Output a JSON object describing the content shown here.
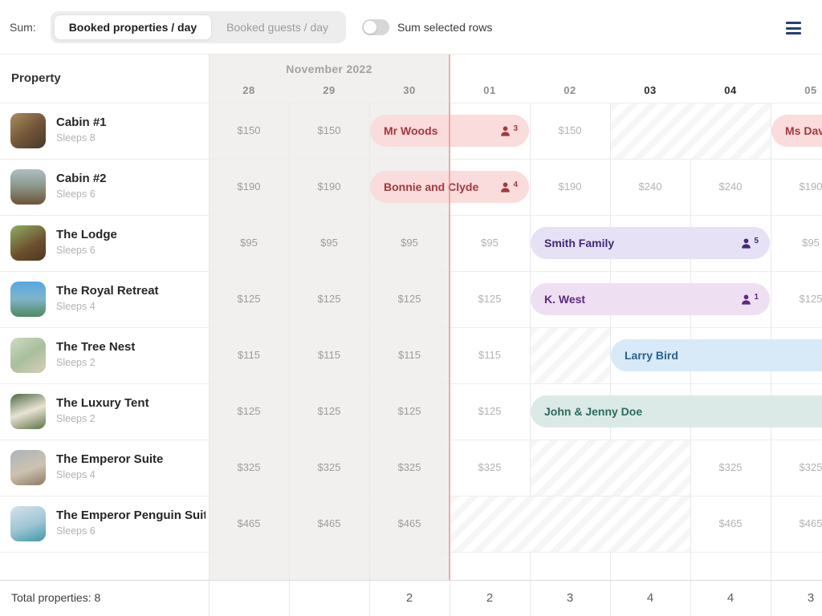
{
  "toolbar": {
    "sum_label": "Sum:",
    "segments": [
      {
        "label": "Booked properties / day",
        "active": true
      },
      {
        "label": "Booked guests / day",
        "active": false
      }
    ],
    "toggle": {
      "label": "Sum selected rows",
      "state": "off"
    },
    "menu_icon": "hamburger-menu"
  },
  "calendar": {
    "property_header": "Property",
    "month_label": "November 2022",
    "days": [
      {
        "label": "28",
        "past": true,
        "weekend": false
      },
      {
        "label": "29",
        "past": true,
        "weekend": false
      },
      {
        "label": "30",
        "past": true,
        "weekend": false
      },
      {
        "label": "01",
        "past": false,
        "weekend": false
      },
      {
        "label": "02",
        "past": false,
        "weekend": false
      },
      {
        "label": "03",
        "past": false,
        "weekend": true
      },
      {
        "label": "04",
        "past": false,
        "weekend": true
      },
      {
        "label": "05",
        "past": false,
        "weekend": false
      }
    ],
    "colors": {
      "past_bg": "#f1f0ef",
      "today_line": "#e4827c",
      "weekend_text": "#2b2b2b"
    }
  },
  "booking_colors": {
    "red": {
      "bg": "#f9dcdb",
      "fg": "#a23940"
    },
    "purple": {
      "bg": "#e6e1f4",
      "fg": "#43297a"
    },
    "lilac": {
      "bg": "#efdff2",
      "fg": "#5d2a7e"
    },
    "blue": {
      "bg": "#d8e9f8",
      "fg": "#29618e"
    },
    "teal": {
      "bg": "#dbeae6",
      "fg": "#2b6a5e"
    }
  },
  "icons": {
    "guest": "person-icon",
    "menu": "hamburger-menu-icon"
  },
  "properties": [
    {
      "name": "Cabin #1",
      "sleeps": "Sleeps 8",
      "cells": [
        {
          "t": "price",
          "v": "$150"
        },
        {
          "t": "price",
          "v": "$150"
        },
        null,
        null,
        {
          "t": "price",
          "v": "$150"
        },
        {
          "t": "hatch"
        },
        {
          "t": "hatch"
        },
        null
      ],
      "bookings": [
        {
          "label": "Mr Woods",
          "guests": "3",
          "color": "red",
          "start": 2,
          "span": 2,
          "clipped": false
        },
        {
          "label": "Ms Dav",
          "guests": null,
          "color": "red",
          "start": 7,
          "span": 2,
          "clipped": true
        }
      ]
    },
    {
      "name": "Cabin #2",
      "sleeps": "Sleeps 6",
      "cells": [
        {
          "t": "price",
          "v": "$190"
        },
        {
          "t": "price",
          "v": "$190"
        },
        null,
        null,
        {
          "t": "price",
          "v": "$190"
        },
        {
          "t": "price",
          "v": "$240"
        },
        {
          "t": "price",
          "v": "$240"
        },
        {
          "t": "price",
          "v": "$190"
        }
      ],
      "bookings": [
        {
          "label": "Bonnie and Clyde",
          "guests": "4",
          "color": "red",
          "start": 2,
          "span": 2,
          "clipped": false
        }
      ]
    },
    {
      "name": "The Lodge",
      "sleeps": "Sleeps 6",
      "cells": [
        {
          "t": "price",
          "v": "$95"
        },
        {
          "t": "price",
          "v": "$95"
        },
        {
          "t": "price",
          "v": "$95"
        },
        {
          "t": "price",
          "v": "$95"
        },
        null,
        null,
        null,
        {
          "t": "price",
          "v": "$95"
        }
      ],
      "bookings": [
        {
          "label": "Smith Family",
          "guests": "5",
          "color": "purple",
          "start": 4,
          "span": 3,
          "clipped": false
        }
      ]
    },
    {
      "name": "The Royal Retreat",
      "sleeps": "Sleeps 4",
      "cells": [
        {
          "t": "price",
          "v": "$125"
        },
        {
          "t": "price",
          "v": "$125"
        },
        {
          "t": "price",
          "v": "$125"
        },
        {
          "t": "price",
          "v": "$125"
        },
        null,
        null,
        null,
        {
          "t": "price",
          "v": "$125"
        }
      ],
      "bookings": [
        {
          "label": "K. West",
          "guests": "1",
          "color": "lilac",
          "start": 4,
          "span": 3,
          "clipped": false
        }
      ]
    },
    {
      "name": "The Tree Nest",
      "sleeps": "Sleeps 2",
      "cells": [
        {
          "t": "price",
          "v": "$115"
        },
        {
          "t": "price",
          "v": "$115"
        },
        {
          "t": "price",
          "v": "$115"
        },
        {
          "t": "price",
          "v": "$115"
        },
        {
          "t": "hatch"
        },
        null,
        null,
        null
      ],
      "bookings": [
        {
          "label": "Larry Bird",
          "guests": null,
          "color": "blue",
          "start": 5,
          "span": 3,
          "clipped": true
        }
      ]
    },
    {
      "name": "The Luxury Tent",
      "sleeps": "Sleeps 2",
      "cells": [
        {
          "t": "price",
          "v": "$125"
        },
        {
          "t": "price",
          "v": "$125"
        },
        {
          "t": "price",
          "v": "$125"
        },
        {
          "t": "price",
          "v": "$125"
        },
        null,
        null,
        null,
        null
      ],
      "bookings": [
        {
          "label": "John & Jenny Doe",
          "guests": null,
          "color": "teal",
          "start": 4,
          "span": 4,
          "clipped": true
        }
      ]
    },
    {
      "name": "The Emperor Suite",
      "sleeps": "Sleeps 4",
      "cells": [
        {
          "t": "price",
          "v": "$325"
        },
        {
          "t": "price",
          "v": "$325"
        },
        {
          "t": "price",
          "v": "$325"
        },
        {
          "t": "price",
          "v": "$325"
        },
        {
          "t": "hatch"
        },
        {
          "t": "hatch"
        },
        {
          "t": "price",
          "v": "$325"
        },
        {
          "t": "price",
          "v": "$325"
        }
      ],
      "bookings": []
    },
    {
      "name": "The Emperor Penguin Suite",
      "sleeps": "Sleeps 6",
      "cells": [
        {
          "t": "price",
          "v": "$465"
        },
        {
          "t": "price",
          "v": "$465"
        },
        {
          "t": "price",
          "v": "$465"
        },
        {
          "t": "hatch"
        },
        {
          "t": "hatch"
        },
        {
          "t": "hatch"
        },
        {
          "t": "price",
          "v": "$465"
        },
        {
          "t": "price",
          "v": "$465"
        }
      ],
      "bookings": []
    }
  ],
  "footer": {
    "label": "Total properties: 8",
    "totals": [
      "",
      "",
      "2",
      "2",
      "3",
      "4",
      "4",
      "3"
    ]
  }
}
